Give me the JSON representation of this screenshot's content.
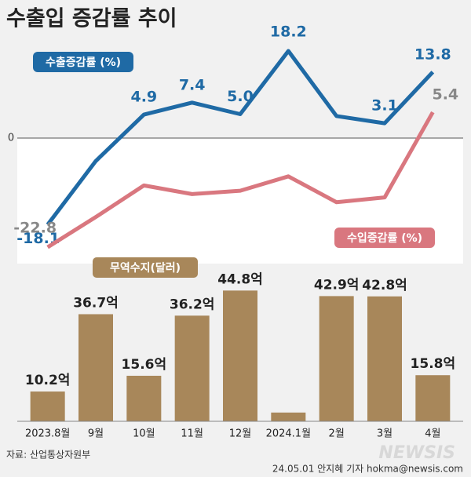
{
  "title": "수출입 증감률 추이",
  "chart_data": [
    {
      "type": "line",
      "categories": [
        "2023.8월",
        "9월",
        "10월",
        "11월",
        "12월",
        "2024.1월",
        "2월",
        "3월",
        "4월"
      ],
      "series": [
        {
          "name": "수출증감률 (%)",
          "color": "#1f6aa5",
          "values": [
            -18.1,
            -4.8,
            4.9,
            7.4,
            5.0,
            18.2,
            4.6,
            3.1,
            13.8
          ],
          "value_labels": [
            "-18.1",
            null,
            "4.9",
            "7.4",
            "5.0",
            "18.2",
            null,
            "3.1",
            "13.8"
          ]
        },
        {
          "name": "수입증감률 (%)",
          "color": "#d9777f",
          "values": [
            -22.8,
            -16.5,
            -9.9,
            -11.7,
            -11.0,
            -8.0,
            -13.4,
            -12.4,
            5.4
          ],
          "value_labels": [
            "-22.8",
            null,
            null,
            null,
            null,
            null,
            null,
            null,
            "5.4"
          ]
        }
      ],
      "ylim": [
        -25,
        20
      ],
      "yticks": [
        0
      ]
    },
    {
      "type": "bar",
      "title": "무역수지(달러)",
      "color": "#a8875a",
      "categories": [
        "2023.8월",
        "9월",
        "10월",
        "11월",
        "12월",
        "2024.1월",
        "2월",
        "3월",
        "4월"
      ],
      "values": [
        10.2,
        36.7,
        15.6,
        36.2,
        44.8,
        3.0,
        42.9,
        42.8,
        15.8
      ],
      "value_labels": [
        "10.2억",
        "36.7억",
        "15.6억",
        "36.2억",
        "44.8억",
        null,
        "42.9억",
        "42.8억",
        "15.8억"
      ],
      "ylim": [
        0,
        50
      ]
    }
  ],
  "source": "자료: 산업통상자원부",
  "credit": "24.05.01 안지혜 기자 hokma@newsis.com",
  "watermark": "NEWSIS"
}
